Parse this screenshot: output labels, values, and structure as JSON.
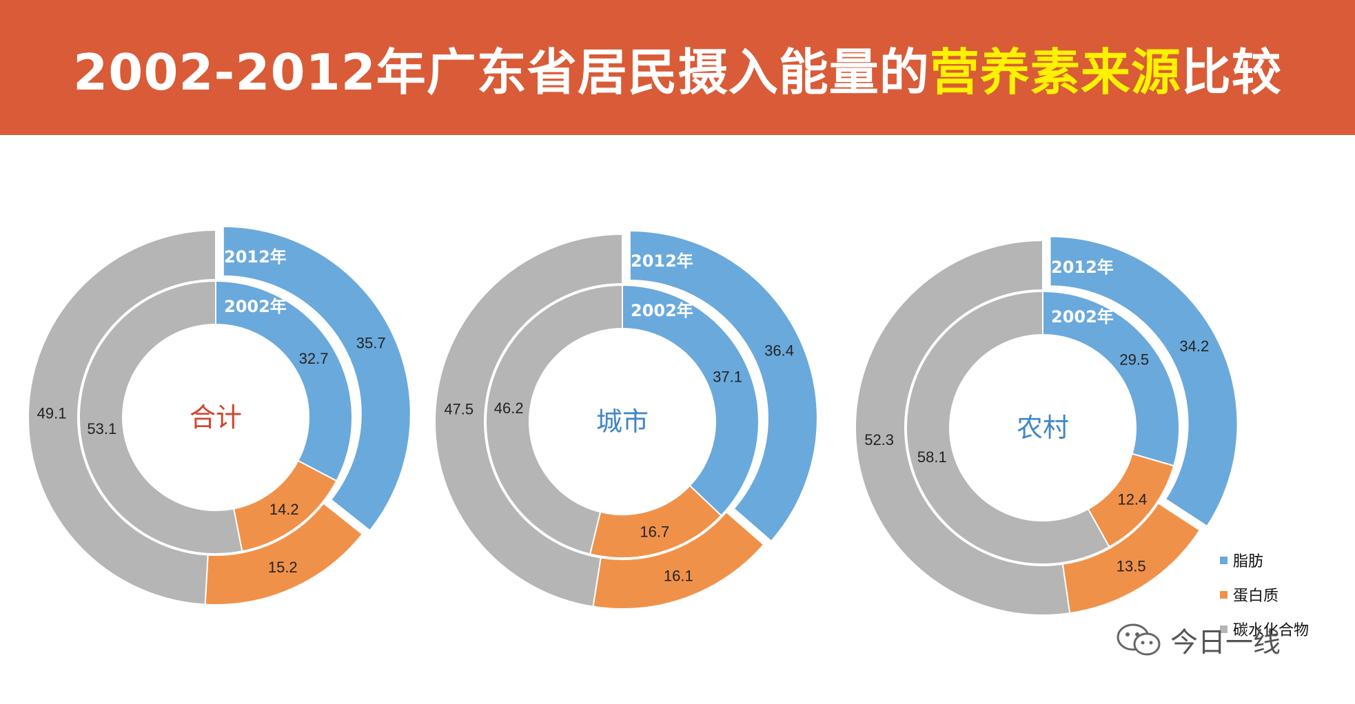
{
  "header": {
    "title_pre": "2002-2012年广东省居民摄入能量的",
    "title_highlight": "营养素来源",
    "title_post": "比较"
  },
  "colors": {
    "header_bg": "#d95b37",
    "title_highlight": "#fff200",
    "fat": "#6aa9dc",
    "protein": "#f0914a",
    "carb": "#b5b5b5",
    "center_total": "#d2432b",
    "center_other": "#3f86c8"
  },
  "chart_data": [
    {
      "type": "donut",
      "center_label": "合计",
      "outer_ring_label": "2012年",
      "inner_ring_label": "2002年",
      "categories": [
        "脂肪",
        "蛋白质",
        "碳水化合物"
      ],
      "series": [
        {
          "name": "2002年",
          "values": [
            32.7,
            14.2,
            53.1
          ]
        },
        {
          "name": "2012年",
          "values": [
            35.7,
            15.2,
            49.1
          ]
        }
      ]
    },
    {
      "type": "donut",
      "center_label": "城市",
      "outer_ring_label": "2012年",
      "inner_ring_label": "2002年",
      "categories": [
        "脂肪",
        "蛋白质",
        "碳水化合物"
      ],
      "series": [
        {
          "name": "2002年",
          "values": [
            37.1,
            16.7,
            46.2
          ]
        },
        {
          "name": "2012年",
          "values": [
            36.4,
            16.1,
            47.5
          ]
        }
      ]
    },
    {
      "type": "donut",
      "center_label": "农村",
      "outer_ring_label": "2012年",
      "inner_ring_label": "2002年",
      "categories": [
        "脂肪",
        "蛋白质",
        "碳水化合物"
      ],
      "series": [
        {
          "name": "2002年",
          "values": [
            29.5,
            12.4,
            58.1
          ]
        },
        {
          "name": "2012年",
          "values": [
            34.2,
            13.5,
            52.3
          ]
        }
      ]
    }
  ],
  "legend": {
    "items": [
      {
        "label": "脂肪",
        "color": "#6aa9dc"
      },
      {
        "label": "蛋白质",
        "color": "#f0914a"
      },
      {
        "label": "碳水化合物",
        "color": "#b5b5b5"
      }
    ]
  },
  "watermark": {
    "text": "今日一线",
    "icon": "wechat-icon"
  }
}
